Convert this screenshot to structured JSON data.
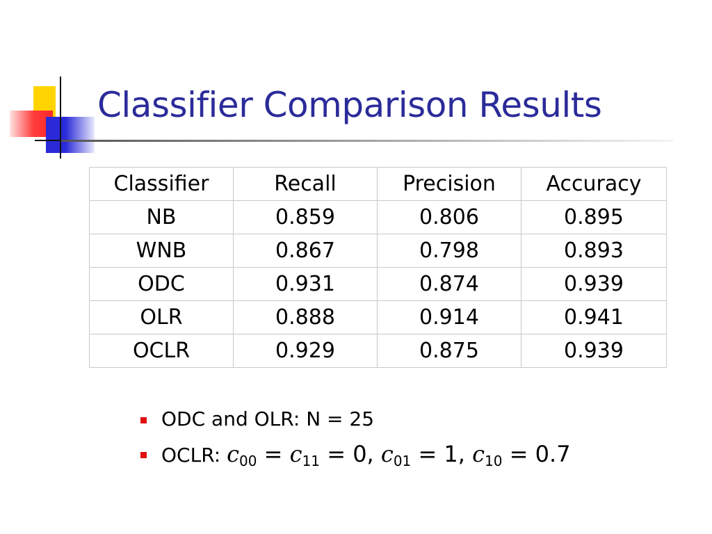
{
  "slide": {
    "title": "Classifier Comparison Results",
    "colors": {
      "title": "#2b2b9a",
      "bullet": "#e01010",
      "deco_yellow": "#ffd400",
      "deco_red": "#ff3b3b",
      "deco_blue": "#2a2ad8"
    }
  },
  "table": {
    "headers": [
      "Classifier",
      "Recall",
      "Precision",
      "Accuracy"
    ],
    "rows": [
      [
        "NB",
        "0.859",
        "0.806",
        "0.895"
      ],
      [
        "WNB",
        "0.867",
        "0.798",
        "0.893"
      ],
      [
        "ODC",
        "0.931",
        "0.874",
        "0.939"
      ],
      [
        "OLR",
        "0.888",
        "0.914",
        "0.941"
      ],
      [
        "OCLR",
        "0.929",
        "0.875",
        "0.939"
      ]
    ]
  },
  "notes": {
    "first": "ODC and OLR: N = 25",
    "second": {
      "prefix": "OCLR: ",
      "terms": [
        {
          "var": "c",
          "sub": "00",
          "eq": " = "
        },
        {
          "var": "c",
          "sub": "11",
          "eq": " = 0, "
        },
        {
          "var": "c",
          "sub": "01",
          "eq": " = 1, "
        },
        {
          "var": "c",
          "sub": "10",
          "eq": " = 0.7"
        }
      ]
    }
  }
}
